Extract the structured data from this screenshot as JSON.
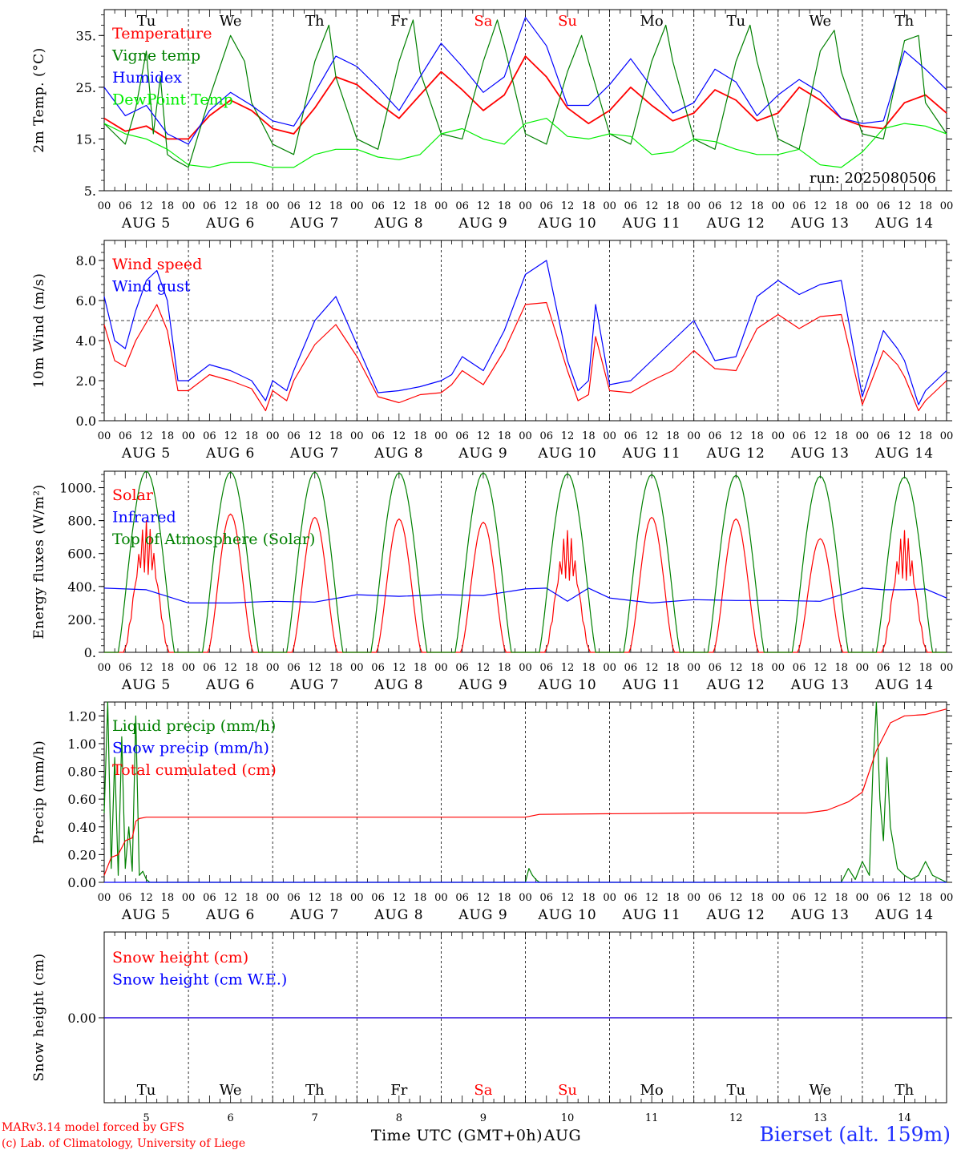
{
  "days_short": [
    "Tu",
    "We",
    "Th",
    "Fr",
    "Sa",
    "Su",
    "Mo",
    "Tu",
    "We",
    "Th"
  ],
  "weekend_color": "#ff0000",
  "normal_day_color": "#000000",
  "weekend_days": [
    "Sa",
    "Su"
  ],
  "date_labels": [
    "AUG  5",
    "AUG  6",
    "AUG  7",
    "AUG  8",
    "AUG  9",
    "AUG 10",
    "AUG 11",
    "AUG 12",
    "AUG 13",
    "AUG 14"
  ],
  "hour_labels": [
    "00",
    "06",
    "12",
    "18"
  ],
  "bottom_day_numbers": [
    "5",
    "6",
    "7",
    "8",
    "9",
    "10",
    "11",
    "12",
    "13",
    "14"
  ],
  "x_axis_title": "Time UTC (GMT+0h)",
  "x_axis_month": "AUG",
  "footer": {
    "model": "MARv3.14 model forced by GFS",
    "lab": "(c) Lab. of Climatology, University of Liege",
    "station": "Bierset (alt. 159m)"
  },
  "chart_data": [
    {
      "type": "line",
      "ylabel": "2m Temp. (°C)",
      "ylim": [
        5,
        40
      ],
      "yticks": [
        "5.",
        "15.",
        "25.",
        "35."
      ],
      "x_unit": "hours since AUG 5 00 UTC",
      "annotation": "run: 2025080506",
      "series": [
        {
          "name": "Temperature",
          "color": "#ff0000",
          "width": 1.8,
          "x": [
            0,
            6,
            12,
            18,
            24,
            30,
            36,
            42,
            48,
            54,
            60,
            66,
            72,
            78,
            84,
            90,
            96,
            102,
            108,
            114,
            120,
            126,
            132,
            138,
            144,
            150,
            156,
            162,
            168,
            174,
            180,
            186,
            192,
            198,
            204,
            210,
            216,
            222,
            228,
            234,
            240
          ],
          "y": [
            19,
            16.5,
            17.5,
            15,
            15,
            19.5,
            22.5,
            20.5,
            17,
            16,
            21,
            27,
            25.5,
            22,
            19,
            23.5,
            28,
            24.5,
            20.5,
            23.5,
            31,
            27,
            21,
            18,
            20.5,
            25,
            21.5,
            18.5,
            20,
            24.5,
            22.5,
            18.5,
            20,
            25,
            22.5,
            19,
            17.5,
            17,
            22,
            23.5,
            20
          ]
        },
        {
          "name": "Vigne temp",
          "color": "#008000",
          "width": 1.2,
          "x": [
            0,
            3,
            6,
            9,
            12,
            14,
            16,
            18,
            20,
            24,
            30,
            36,
            40,
            42,
            48,
            54,
            60,
            64,
            66,
            72,
            78,
            84,
            88,
            90,
            96,
            102,
            108,
            112,
            114,
            120,
            126,
            132,
            136,
            138,
            144,
            150,
            156,
            160,
            162,
            168,
            174,
            180,
            184,
            186,
            192,
            198,
            204,
            208,
            210,
            216,
            222,
            228,
            232,
            234,
            240
          ],
          "y": [
            18,
            16,
            14,
            21,
            32,
            16,
            27,
            12,
            11,
            9.5,
            23,
            35,
            30,
            22,
            14,
            12,
            30,
            37,
            27,
            15,
            13,
            30,
            38,
            28,
            16,
            15,
            30,
            38,
            33,
            16,
            14,
            28,
            35,
            30,
            16,
            14,
            30,
            37,
            30,
            15,
            13,
            30,
            37,
            30,
            15,
            13,
            32,
            36,
            28,
            16,
            15,
            34,
            35,
            22,
            16
          ]
        },
        {
          "name": "Humidex",
          "color": "#0000ff",
          "width": 1.2,
          "x": [
            0,
            6,
            12,
            18,
            24,
            30,
            36,
            42,
            48,
            54,
            60,
            66,
            72,
            78,
            84,
            90,
            96,
            102,
            108,
            114,
            120,
            126,
            132,
            138,
            144,
            150,
            156,
            162,
            168,
            174,
            180,
            186,
            192,
            198,
            204,
            210,
            216,
            222,
            228,
            234,
            240
          ],
          "y": [
            25,
            19.5,
            21.5,
            16,
            14,
            20.5,
            24,
            21.5,
            18.5,
            17.5,
            24,
            31,
            29,
            25,
            20.5,
            27,
            33.5,
            29,
            24,
            27,
            38.5,
            33,
            21.5,
            21.5,
            25.5,
            30.5,
            25,
            20,
            22,
            28.5,
            26,
            19.5,
            23.5,
            26.5,
            24,
            19,
            18,
            18.5,
            32,
            28.5,
            24.5
          ]
        },
        {
          "name": "DewPoint Temp",
          "color": "#00ee00",
          "width": 1.2,
          "x": [
            0,
            6,
            12,
            18,
            24,
            30,
            36,
            42,
            48,
            54,
            60,
            66,
            72,
            78,
            84,
            90,
            96,
            102,
            108,
            114,
            120,
            126,
            132,
            138,
            144,
            150,
            156,
            162,
            168,
            174,
            180,
            186,
            192,
            198,
            204,
            210,
            216,
            222,
            228,
            234,
            240
          ],
          "y": [
            18,
            16,
            15,
            13,
            10,
            9.5,
            10.5,
            10.5,
            9.5,
            9.5,
            12,
            13,
            13,
            11.5,
            11,
            12,
            16,
            17,
            15,
            14,
            18,
            19,
            15.5,
            15,
            16,
            15.5,
            12,
            12.5,
            15,
            14.5,
            13,
            12,
            12,
            13,
            10,
            9.5,
            12.5,
            17,
            18,
            17.5,
            16
          ]
        }
      ]
    },
    {
      "type": "line",
      "ylabel": "10m Wind (m/s)",
      "ylim": [
        0,
        9
      ],
      "yticks": [
        "0.0",
        "2.0",
        "4.0",
        "6.0",
        "8.0"
      ],
      "reference_line": 5,
      "series": [
        {
          "name": "Wind speed",
          "color": "#ff0000",
          "x": [
            0,
            3,
            6,
            9,
            12,
            15,
            18,
            21,
            24,
            30,
            36,
            42,
            46,
            48,
            52,
            54,
            60,
            66,
            72,
            78,
            84,
            90,
            96,
            99,
            102,
            108,
            114,
            120,
            126,
            132,
            135,
            138,
            140,
            144,
            150,
            156,
            162,
            168,
            174,
            180,
            186,
            192,
            198,
            204,
            210,
            216,
            222,
            226,
            228,
            232,
            234,
            240
          ],
          "y": [
            4.8,
            3.0,
            2.7,
            4.0,
            4.9,
            5.8,
            4.5,
            1.5,
            1.5,
            2.3,
            2.0,
            1.6,
            0.5,
            1.5,
            1.0,
            2.0,
            3.8,
            4.8,
            3.2,
            1.2,
            0.9,
            1.3,
            1.4,
            1.8,
            2.5,
            1.8,
            3.5,
            5.8,
            5.9,
            2.5,
            1.0,
            1.3,
            4.2,
            1.5,
            1.4,
            2.0,
            2.5,
            3.5,
            2.6,
            2.5,
            4.6,
            5.3,
            4.6,
            5.2,
            5.3,
            0.8,
            3.5,
            2.8,
            2.2,
            0.5,
            1.0,
            2.0
          ]
        },
        {
          "name": "Wind gust",
          "color": "#0000ff",
          "x": [
            0,
            3,
            6,
            9,
            12,
            15,
            18,
            21,
            24,
            30,
            36,
            42,
            46,
            48,
            52,
            54,
            60,
            66,
            72,
            78,
            84,
            90,
            96,
            99,
            102,
            108,
            114,
            120,
            126,
            132,
            135,
            138,
            140,
            144,
            150,
            156,
            162,
            168,
            174,
            180,
            186,
            192,
            198,
            204,
            210,
            216,
            222,
            226,
            228,
            232,
            234,
            240
          ],
          "y": [
            6.2,
            4.0,
            3.6,
            5.5,
            7.0,
            7.5,
            6.0,
            2.0,
            2.0,
            2.8,
            2.5,
            2.0,
            1.0,
            2.0,
            1.5,
            2.5,
            5.0,
            6.2,
            3.8,
            1.4,
            1.5,
            1.7,
            2.0,
            2.3,
            3.2,
            2.5,
            4.5,
            7.3,
            8.0,
            3.0,
            1.5,
            2.0,
            5.8,
            1.8,
            2.0,
            3.0,
            4.0,
            5.0,
            3.0,
            3.2,
            6.2,
            7.0,
            6.3,
            6.8,
            7.0,
            1.2,
            4.5,
            3.6,
            3.0,
            0.8,
            1.5,
            2.5
          ]
        }
      ]
    },
    {
      "type": "line",
      "ylabel": "Energy fluxes (W/m²)",
      "ylim": [
        0,
        1100
      ],
      "yticks": [
        "0.",
        "200.",
        "400.",
        "600.",
        "800.",
        "1000."
      ],
      "series": [
        {
          "name": "Solar",
          "color": "#ff0000",
          "day_peaks": [
            800,
            840,
            820,
            810,
            790,
            740,
            820,
            810,
            690,
            740
          ]
        },
        {
          "name": "Infrared",
          "color": "#0000ff",
          "x": [
            0,
            12,
            24,
            36,
            48,
            60,
            72,
            84,
            96,
            108,
            120,
            126,
            132,
            138,
            144,
            156,
            168,
            180,
            192,
            204,
            216,
            222,
            228,
            234,
            240
          ],
          "y": [
            390,
            380,
            300,
            300,
            310,
            305,
            350,
            340,
            350,
            345,
            385,
            390,
            310,
            390,
            330,
            300,
            320,
            315,
            315,
            310,
            390,
            380,
            380,
            385,
            330
          ]
        },
        {
          "name": "Top of Atmosphere (Solar)",
          "color": "#008000",
          "day_peaks": [
            1100,
            1095,
            1095,
            1090,
            1090,
            1085,
            1080,
            1075,
            1070,
            1065
          ]
        }
      ]
    },
    {
      "type": "line",
      "ylabel": "Precip (mm/h)",
      "ylim": [
        0,
        1.3
      ],
      "yticks": [
        "0.00",
        "0.20",
        "0.40",
        "0.60",
        "0.80",
        "1.00",
        "1.20"
      ],
      "series": [
        {
          "name": "Liquid precip (mm/h)",
          "color": "#008000",
          "x": [
            0,
            1,
            2,
            3,
            4,
            5,
            6,
            7,
            8,
            9,
            10,
            11,
            12,
            13,
            14,
            15,
            120,
            121,
            122,
            123,
            124,
            210,
            212,
            214,
            216,
            218,
            219,
            220,
            221,
            222,
            223,
            224,
            226,
            228,
            230,
            232,
            234,
            236,
            240
          ],
          "y": [
            0.5,
            1.3,
            0.1,
            0.9,
            0.05,
            1.05,
            0.1,
            0.4,
            0.08,
            1.2,
            0.05,
            0.08,
            0.02,
            0,
            0,
            0,
            0,
            0.1,
            0.05,
            0.02,
            0,
            0,
            0.1,
            0.02,
            0.15,
            0.05,
            0.8,
            1.3,
            0.6,
            0.3,
            0.9,
            0.4,
            0.1,
            0.05,
            0.02,
            0.05,
            0.15,
            0.05,
            0
          ]
        },
        {
          "name": "Snow precip (mm/h)",
          "color": "#0000ff",
          "x": [
            0,
            240
          ],
          "y": [
            0,
            0
          ]
        },
        {
          "name": "Total cumulated (cm)",
          "color": "#ff0000",
          "x": [
            0,
            2,
            4,
            6,
            8,
            9,
            10,
            12,
            120,
            124,
            168,
            200,
            206,
            212,
            216,
            220,
            224,
            228,
            234,
            240
          ],
          "y": [
            0.05,
            0.18,
            0.2,
            0.3,
            0.32,
            0.44,
            0.46,
            0.47,
            0.47,
            0.49,
            0.5,
            0.5,
            0.52,
            0.58,
            0.65,
            0.95,
            1.15,
            1.2,
            1.21,
            1.25
          ]
        }
      ]
    },
    {
      "type": "line",
      "ylabel": "Snow height (cm)",
      "ylim": [
        -1,
        1
      ],
      "yticks": [
        "0.00"
      ],
      "series": [
        {
          "name": "Snow height (cm)",
          "color": "#ff0000",
          "x": [
            0,
            240
          ],
          "y": [
            0,
            0
          ]
        },
        {
          "name": "Snow height (cm W.E.)",
          "color": "#0000ff",
          "x": [
            0,
            240
          ],
          "y": [
            0,
            0
          ]
        }
      ]
    }
  ]
}
